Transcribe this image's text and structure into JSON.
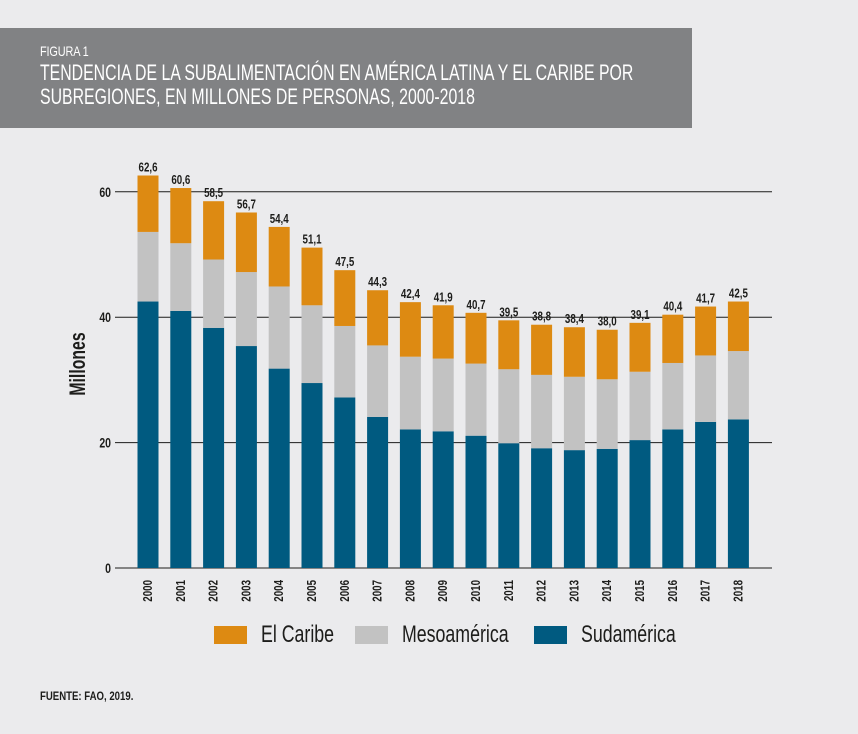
{
  "header": {
    "figure_label": "FIGURA 1",
    "title_line1": "TENDENCIA DE LA SUBALIMENTACIÓN EN AMÉRICA LATINA Y EL CARIBE POR",
    "title_line2": "SUBREGIONES, EN MILLONES DE PERSONAS, 2000-2018"
  },
  "source": "FUENTE: FAO, 2019.",
  "colors": {
    "caribe": "#dd8a12",
    "mesoamerica": "#c2c2c2",
    "sudamerica": "#005a80",
    "grid": "#1d1d1b",
    "text": "#1d1d1b"
  },
  "chart_data": {
    "type": "bar",
    "stacked": true,
    "title": "TENDENCIA DE LA SUBALIMENTACIÓN EN AMÉRICA LATINA Y EL CARIBE POR SUBREGIONES, EN MILLONES DE PERSONAS, 2000-2018",
    "xlabel": "",
    "ylabel": "Millones",
    "ylim": [
      0,
      65
    ],
    "yticks": [
      0,
      20,
      40,
      60
    ],
    "grid": true,
    "legend_position": "bottom",
    "categories": [
      "2000",
      "2001",
      "2002",
      "2003",
      "2004",
      "2005",
      "2006",
      "2007",
      "2008",
      "2009",
      "2010",
      "2011",
      "2012",
      "2013",
      "2014",
      "2015",
      "2016",
      "2017",
      "2018"
    ],
    "series": [
      {
        "name": "Sudamérica",
        "color": "#005a80",
        "values": [
          42.5,
          41.0,
          38.3,
          35.4,
          31.8,
          29.5,
          27.2,
          24.1,
          22.1,
          21.8,
          21.1,
          19.9,
          19.1,
          18.8,
          19.0,
          20.4,
          22.1,
          23.3,
          23.7
        ]
      },
      {
        "name": "Mesoamérica",
        "color": "#c2c2c2",
        "values": [
          11.1,
          10.8,
          10.9,
          11.8,
          13.1,
          12.4,
          11.4,
          11.4,
          11.6,
          11.6,
          11.5,
          11.8,
          11.7,
          11.7,
          11.1,
          10.9,
          10.6,
          10.6,
          10.9
        ]
      },
      {
        "name": "El Caribe",
        "color": "#dd8a12",
        "values": [
          9.0,
          8.8,
          9.3,
          9.5,
          9.5,
          9.2,
          8.9,
          8.8,
          8.7,
          8.5,
          8.1,
          7.8,
          8.0,
          7.9,
          7.9,
          7.8,
          7.7,
          7.8,
          7.9
        ]
      }
    ],
    "totals": [
      62.6,
      60.6,
      58.5,
      56.7,
      54.4,
      51.1,
      47.5,
      44.3,
      42.4,
      41.9,
      40.7,
      39.5,
      38.8,
      38.4,
      38.0,
      39.1,
      40.4,
      41.7,
      42.5
    ],
    "total_labels": [
      "62,6",
      "60,6",
      "58,5",
      "56,7",
      "54,4",
      "51,1",
      "47,5",
      "44,3",
      "42,4",
      "41,9",
      "40,7",
      "39,5",
      "38,8",
      "38,4",
      "38,0",
      "39,1",
      "40,4",
      "41,7",
      "42,5"
    ],
    "legend": [
      "El Caribe",
      "Mesoamérica",
      "Sudamérica"
    ]
  }
}
